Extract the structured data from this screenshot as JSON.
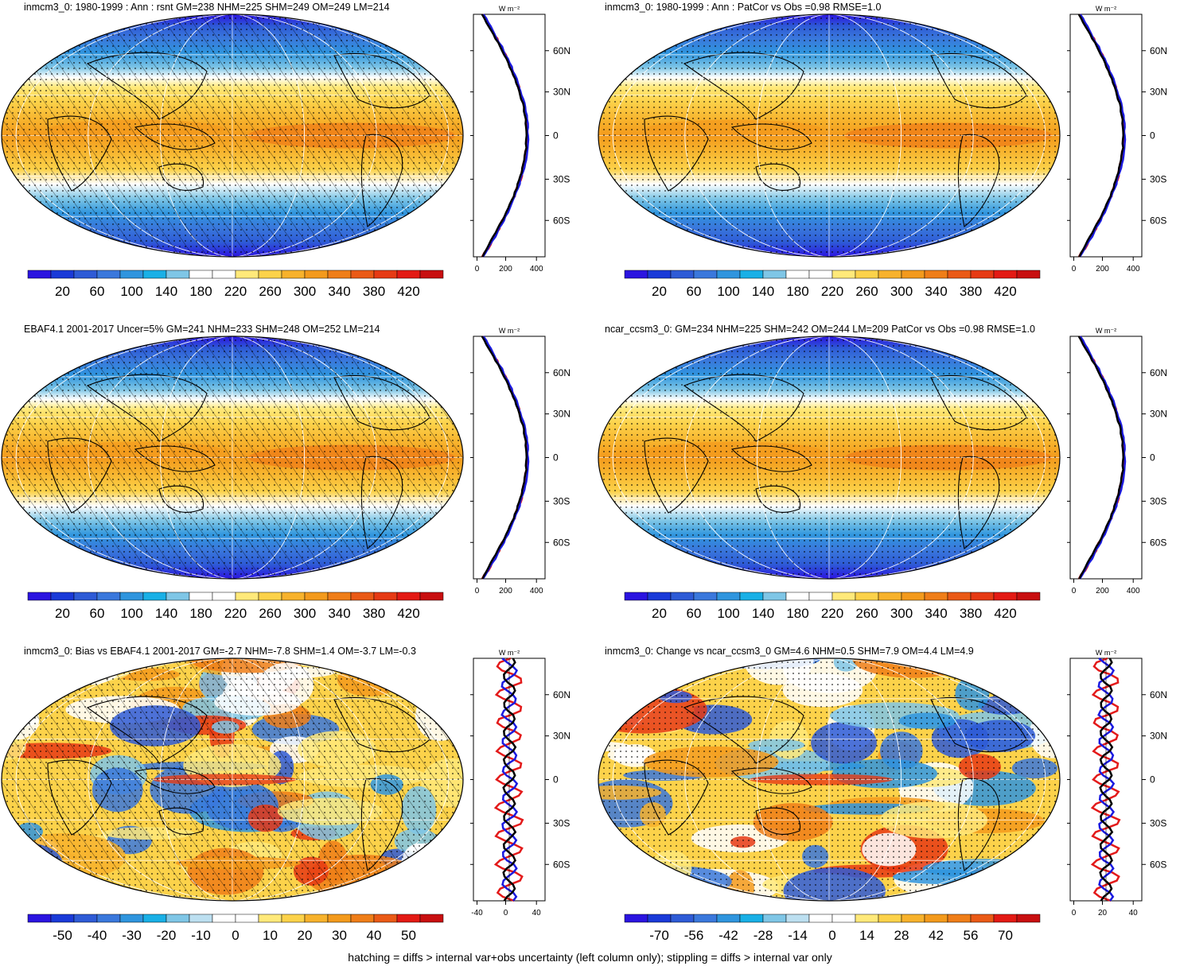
{
  "panels": [
    {
      "title": "inmcm3_0: 1980-1999 : Ann : rsnt GM=238 NHM=225 SHM=249 OM=249 LM=214",
      "kind": "abs",
      "colorbar_labels": [
        "20",
        "60",
        "100",
        "140",
        "180",
        "220",
        "260",
        "300",
        "340",
        "380",
        "420"
      ],
      "zonal_xticks": [
        "0",
        "200",
        "400"
      ],
      "zonal_unit": "W m⁻²",
      "lat_labels": [
        "60N",
        "30N",
        "0",
        "30S",
        "60S"
      ],
      "hatched": true,
      "stippled": true
    },
    {
      "title": "inmcm3_0: 1980-1999 : Ann : PatCor vs Obs =0.98 RMSE=1.0",
      "kind": "abs",
      "colorbar_labels": [
        "20",
        "60",
        "100",
        "140",
        "180",
        "220",
        "260",
        "300",
        "340",
        "380",
        "420"
      ],
      "zonal_xticks": [
        "0",
        "200",
        "400"
      ],
      "zonal_unit": "W m⁻²",
      "lat_labels": [
        "60N",
        "30N",
        "0",
        "30S",
        "60S"
      ],
      "hatched": false,
      "stippled": true
    },
    {
      "title": "EBAF4.1 2001-2017 Uncer=5% GM=241 NHM=233 SHM=248 OM=252 LM=214",
      "kind": "abs",
      "colorbar_labels": [
        "20",
        "60",
        "100",
        "140",
        "180",
        "220",
        "260",
        "300",
        "340",
        "380",
        "420"
      ],
      "zonal_xticks": [
        "0",
        "200",
        "400"
      ],
      "zonal_unit": "W m⁻²",
      "lat_labels": [
        "60N",
        "30N",
        "0",
        "30S",
        "60S"
      ],
      "hatched": true,
      "stippled": true
    },
    {
      "title": "ncar_ccsm3_0: GM=234 NHM=225 SHM=242 OM=244 LM=209 PatCor vs Obs =0.98 RMSE=1.0",
      "kind": "abs",
      "colorbar_labels": [
        "20",
        "60",
        "100",
        "140",
        "180",
        "220",
        "260",
        "300",
        "340",
        "380",
        "420"
      ],
      "zonal_xticks": [
        "0",
        "200",
        "400"
      ],
      "zonal_unit": "W m⁻²",
      "lat_labels": [
        "60N",
        "30N",
        "0",
        "30S",
        "60S"
      ],
      "hatched": false,
      "stippled": true
    },
    {
      "title": "inmcm3_0: Bias vs EBAF4.1 2001-2017 GM=-2.7 NHM=-7.8 SHM=1.4 OM=-3.7 LM=-0.3",
      "kind": "bias",
      "colorbar_labels": [
        "-50",
        "-40",
        "-30",
        "-20",
        "-10",
        "0",
        "10",
        "20",
        "30",
        "40",
        "50"
      ],
      "zonal_xticks": [
        "-40",
        "0",
        "40"
      ],
      "zonal_unit": "W m⁻²",
      "lat_labels": [
        "60N",
        "30N",
        "0",
        "30S",
        "60S"
      ],
      "hatched": true,
      "stippled": true
    },
    {
      "title": "inmcm3_0: Change vs ncar_ccsm3_0 GM=4.6 NHM=0.5 SHM=7.9 OM=4.4 LM=4.9",
      "kind": "change",
      "colorbar_labels": [
        "-70",
        "-56",
        "-42",
        "-28",
        "-14",
        "0",
        "14",
        "28",
        "42",
        "56",
        "70"
      ],
      "zonal_xticks": [
        "0",
        "20",
        "40"
      ],
      "zonal_unit": "W m⁻²",
      "lat_labels": [
        "60N",
        "30N",
        "0",
        "30S",
        "60S"
      ],
      "hatched": false,
      "stippled": true
    }
  ],
  "colors": {
    "abs_scale": [
      "#2b14e0",
      "#1a3ad8",
      "#2e5bd6",
      "#3a78dc",
      "#2f95de",
      "#19b0e6",
      "#7fc6e6",
      "#ffffff",
      "#ffffff",
      "#ffe97a",
      "#fcd24a",
      "#f7b22c",
      "#f39a1c",
      "#ef7e18",
      "#ea5a16",
      "#e63a14",
      "#e31a14",
      "#c80f10"
    ],
    "diff_scale": [
      "#2b14e0",
      "#1a3ad8",
      "#2e5bd6",
      "#3a78dc",
      "#2f95de",
      "#19b0e6",
      "#7fc6e6",
      "#bcdff0",
      "#ffffff",
      "#ffffff",
      "#ffe97a",
      "#fcd24a",
      "#f7b22c",
      "#f39a1c",
      "#ef7e18",
      "#ea5a16",
      "#e31a14",
      "#c80f10"
    ],
    "line_black": "#000000",
    "line_blue": "#1a1ae0",
    "line_red": "#e31a1a"
  },
  "footer": "hatching = diffs > internal var+obs uncertainty (left column only); stippling = diffs > internal var only"
}
